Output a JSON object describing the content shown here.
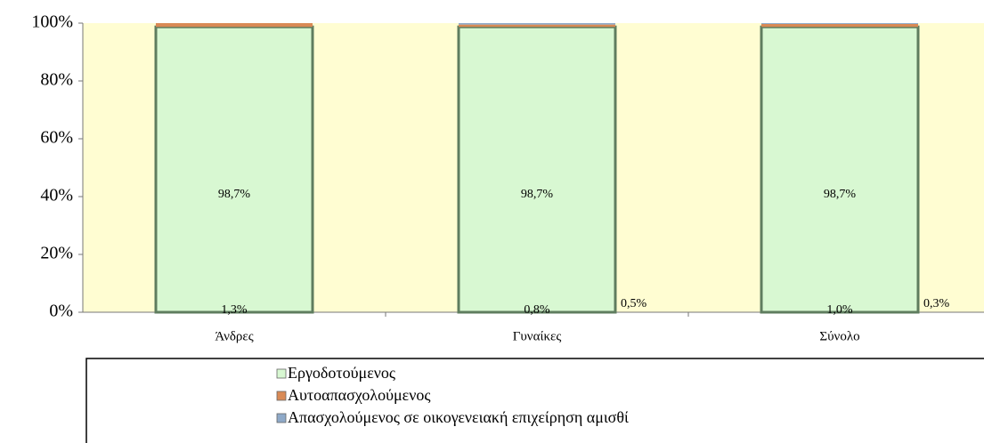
{
  "chart_data": {
    "type": "bar",
    "stacked": true,
    "categories": [
      "Άνδρες",
      "Γυναίκες",
      "Σύνολο"
    ],
    "series": [
      {
        "name": "Εργοδοτούμενος",
        "color": "#d8f8d2",
        "values": [
          98.7,
          98.7,
          98.7
        ],
        "value_labels": [
          "98,7%",
          "98,7%",
          "98,7%"
        ]
      },
      {
        "name": "Αυτοαπασχολούμενος",
        "color": "#d98a55",
        "values": [
          1.3,
          0.8,
          1.0
        ],
        "value_labels": [
          "1,3%",
          "0,8%",
          "1,0%"
        ]
      },
      {
        "name": "Απασχολούμενος σε οικογενειακή επιχείρηση αμισθί",
        "color": "#8ea9c8",
        "values": [
          null,
          0.5,
          0.3
        ],
        "value_labels": [
          null,
          "0,5%",
          "0,3%"
        ]
      }
    ],
    "ylim": [
      0,
      100
    ],
    "yticks": [
      {
        "value": 0,
        "label": "0%"
      },
      {
        "value": 20,
        "label": "20%"
      },
      {
        "value": 40,
        "label": "40%"
      },
      {
        "value": 60,
        "label": "60%"
      },
      {
        "value": 80,
        "label": "80%"
      },
      {
        "value": 100,
        "label": "100%"
      }
    ],
    "plot_background": "#fffdd2",
    "legend": "bottom"
  }
}
